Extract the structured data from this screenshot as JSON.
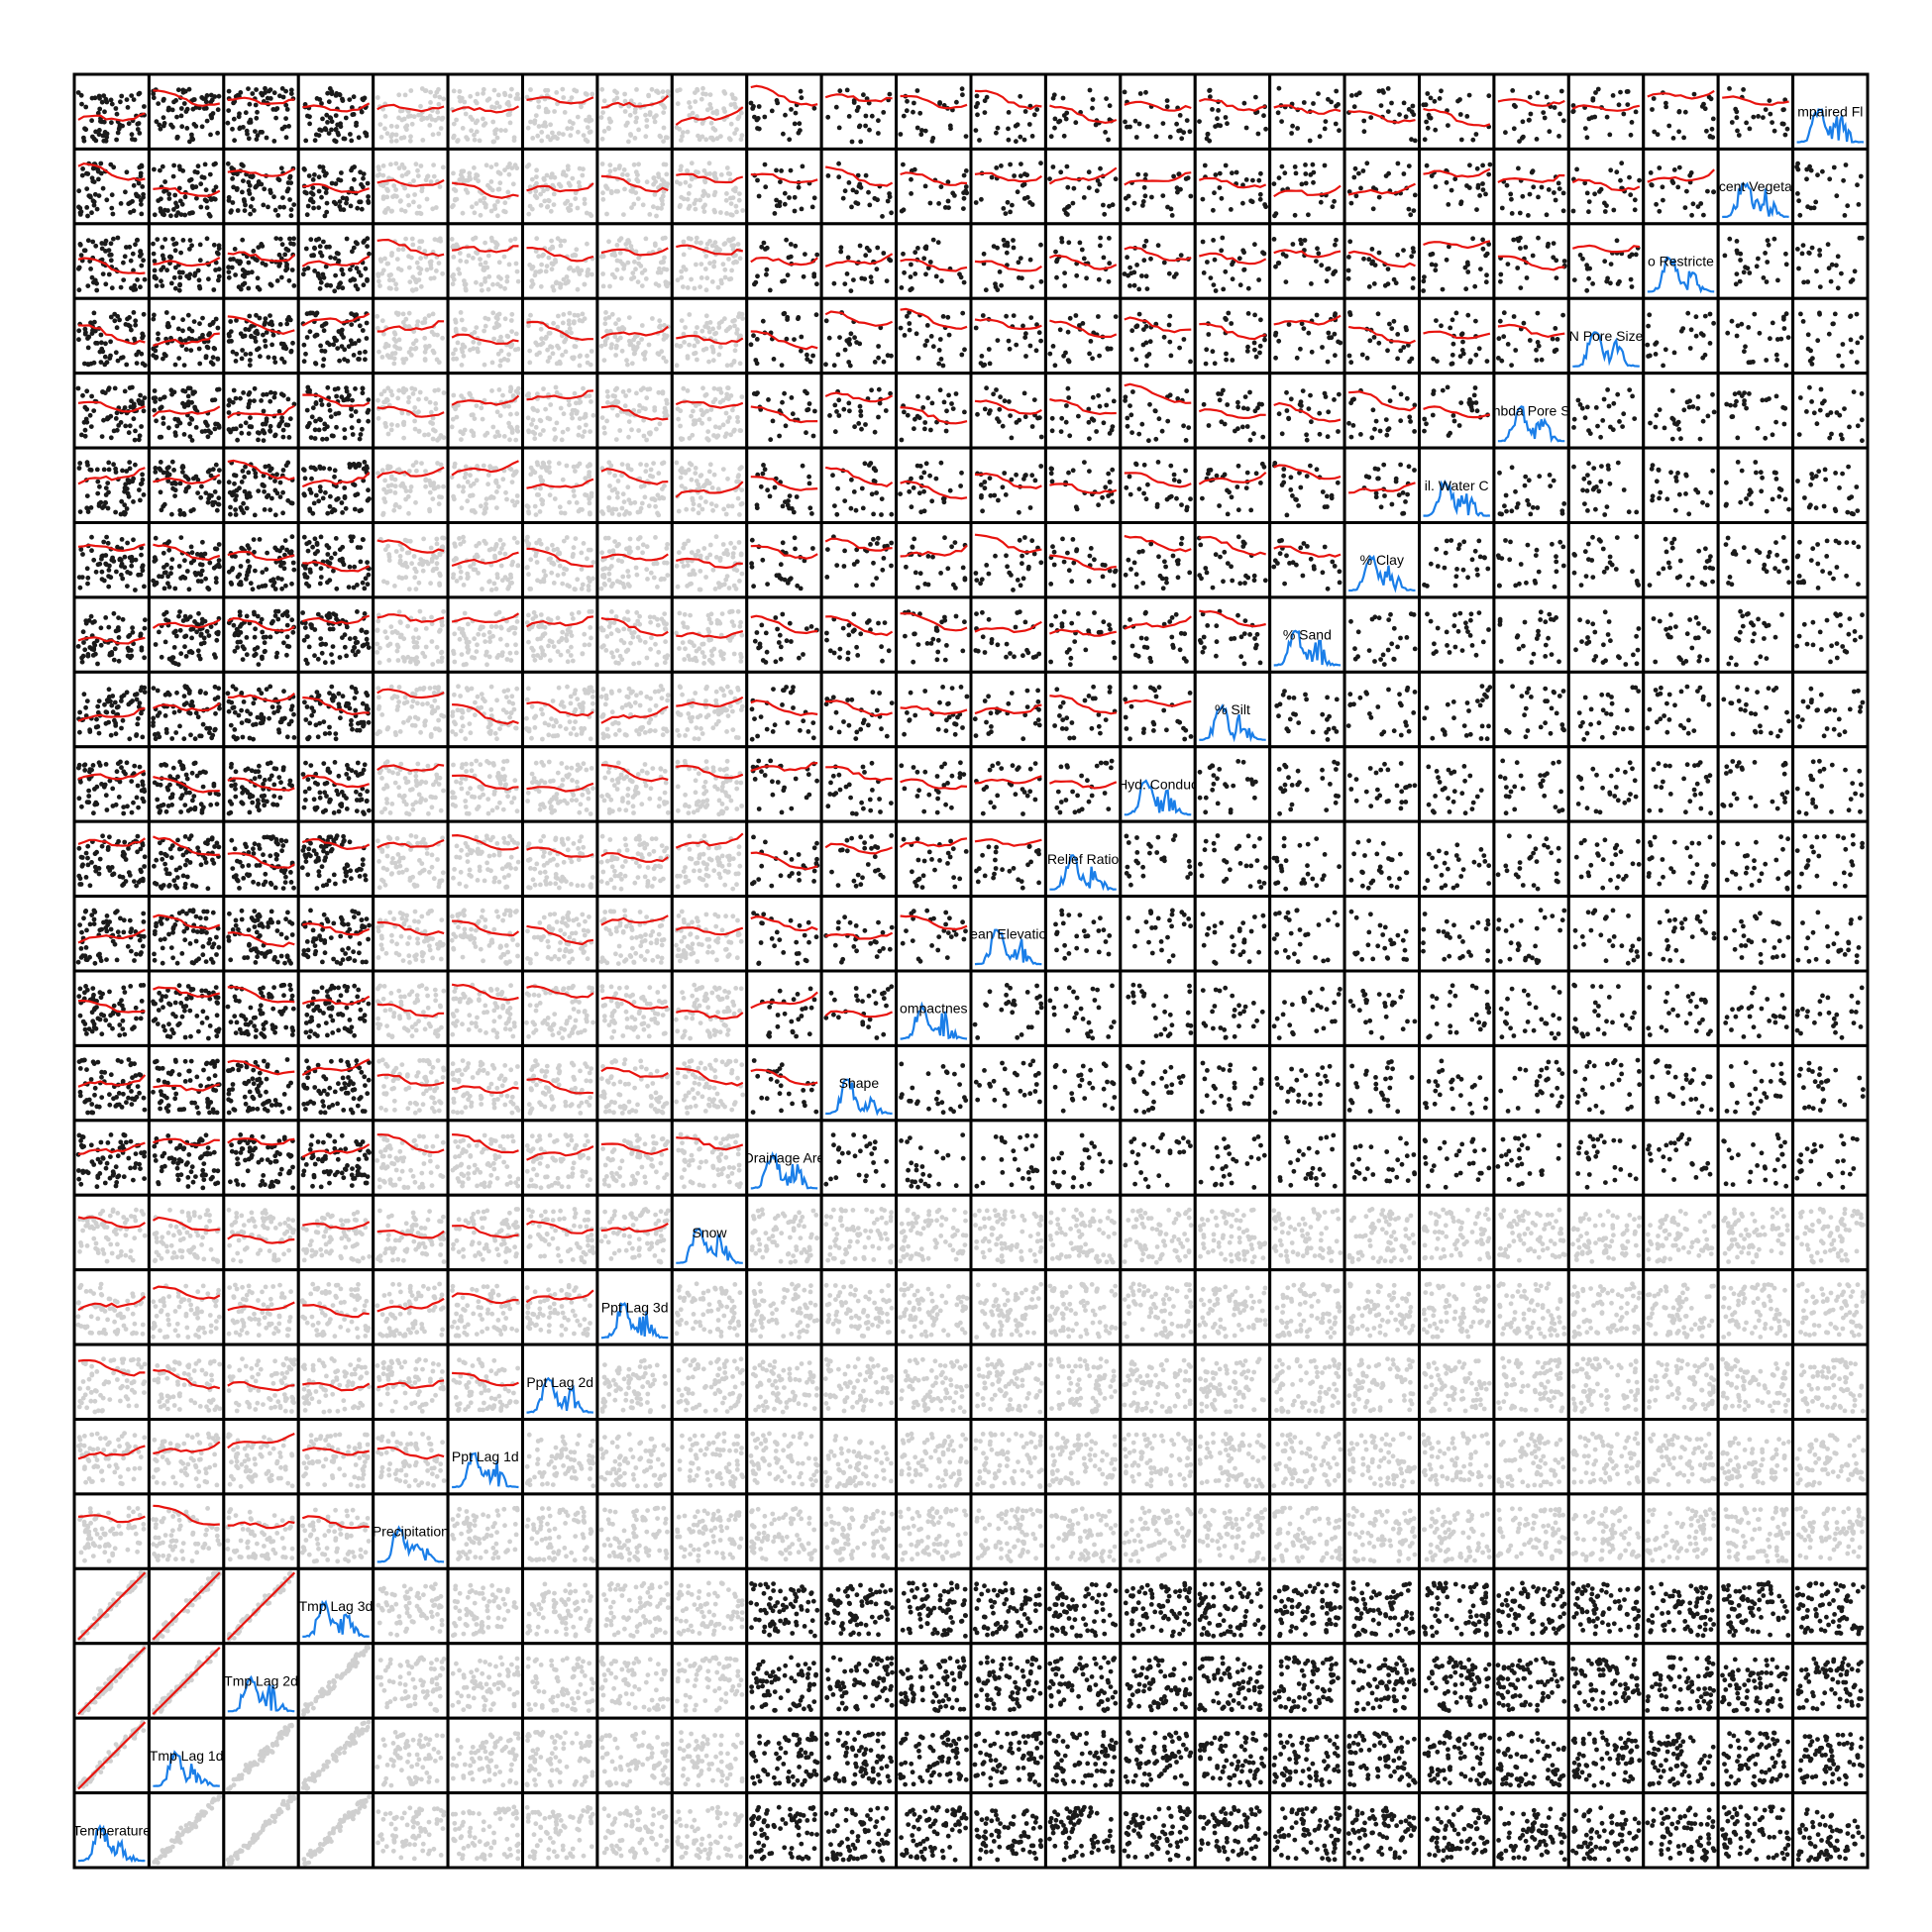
{
  "chart_data": {
    "type": "scatter",
    "chart_kind": "scatterplot-matrix",
    "n_variables": 24,
    "layout_note": "variables are ordered bottom-left to top-right along the diagonal",
    "variables": [
      "Temperature",
      "Tmp Lag 1d",
      "Tmp Lag 2d",
      "Tmp Lag 3d",
      "Precipitation",
      "Ppt Lag 1d",
      "Ppt Lag 2d",
      "Ppt Lag 3d",
      "Snow",
      "Drainage Area",
      "Shape",
      "Compactness",
      "Mean Elevation",
      "Relief Ratio",
      "Hyd. Conductivity",
      "% Silt",
      "% Sand",
      "% Clay",
      "Avail. Water Cap.",
      "Lambda Pore Size",
      "N Pore Size",
      "Depth to Restrictive",
      "Percent Vegetation",
      "Impaired Flow"
    ],
    "diagonal_labels": [
      "Temperature",
      "Tmp Lag 1d",
      "Tmp Lag 2d",
      "Tmp Lag 3d",
      "Precipitation",
      "Ppt Lag 1d",
      "Ppt Lag 2d",
      "Ppt Lag 3d",
      "Snow",
      "Drainage Are",
      "Shape",
      "ompactnes",
      "ean Elevatio",
      "Relief Ratio",
      "Hyd. Conduc",
      "% Silt",
      "% Sand",
      "% Clay",
      "il. Water C",
      "nbda Pore S",
      "N Pore Size",
      "o Restricte",
      "cent Vegeta",
      "mpaired Fl"
    ],
    "panels": {
      "diagonal": "kernel density curve of each variable",
      "lower_triangle": "scatter points with smoothed trend line",
      "upper_triangle": "scatter points without trend line"
    },
    "grid": false,
    "legend": "none"
  },
  "colors": {
    "frame": "#000000",
    "points_light": "#cfcfcf",
    "points_dark": "#1a1a1a",
    "smooth_line": "#e8140f",
    "density_line": "#1a7ee8",
    "background": "#ffffff"
  }
}
